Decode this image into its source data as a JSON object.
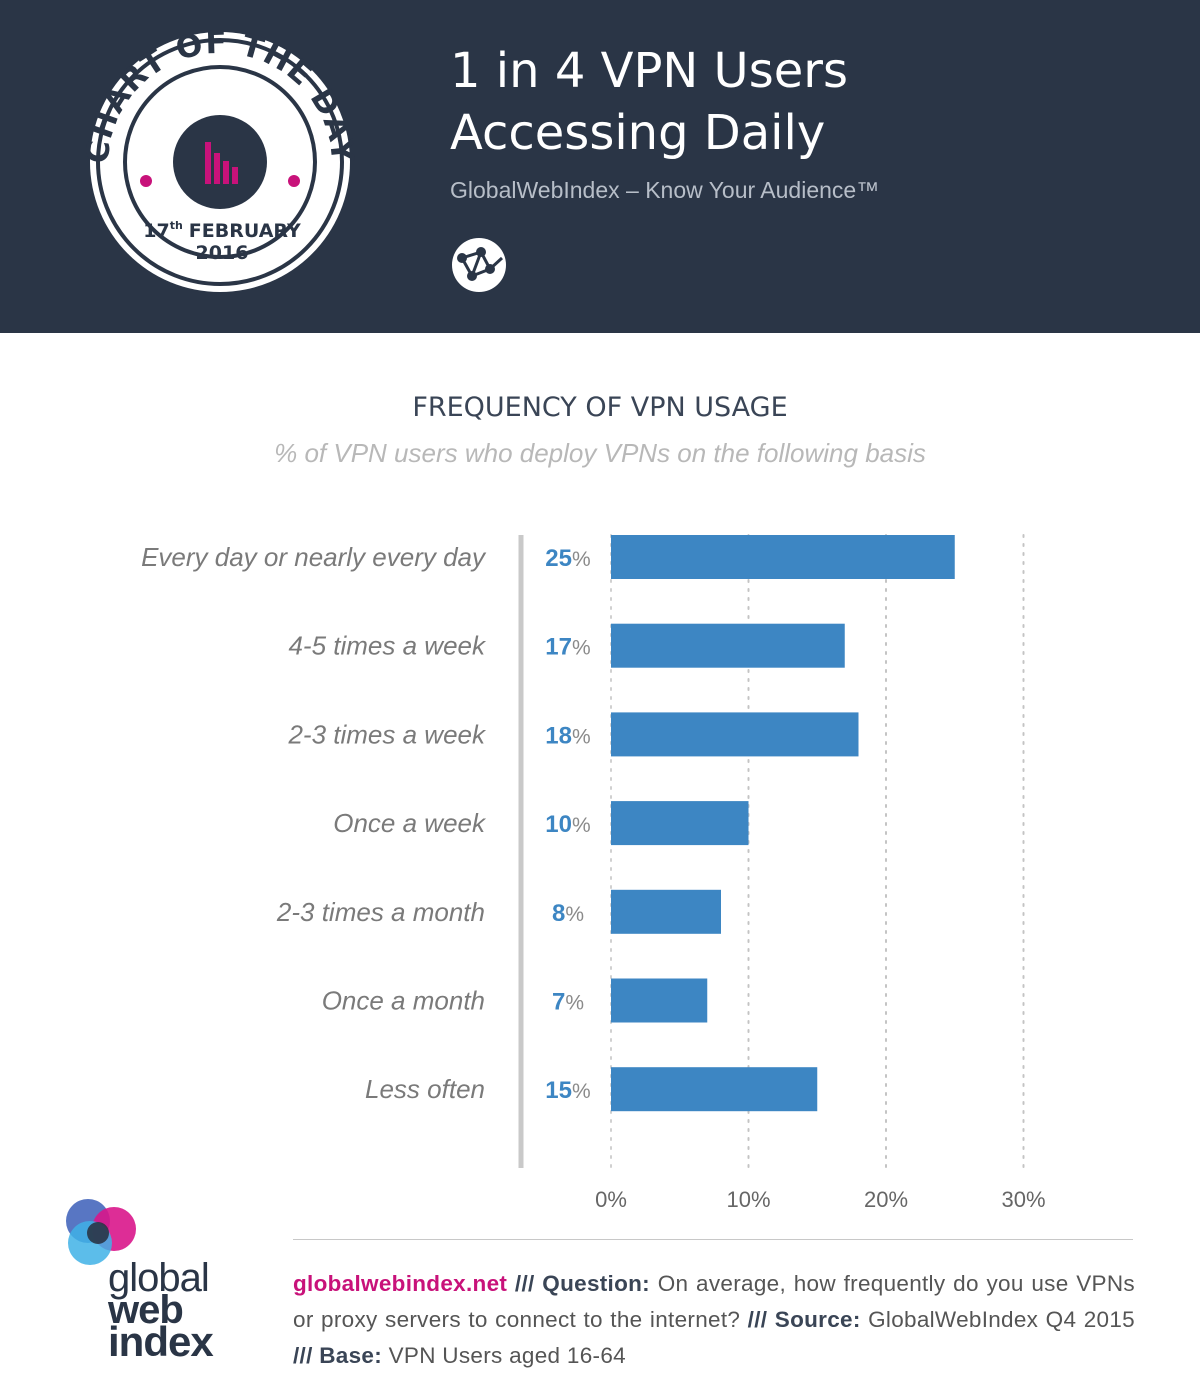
{
  "badge": {
    "ring_text": "CHART OF THE DAY",
    "date_day": "17",
    "date_suffix": "th",
    "date_month": "FEBRUARY",
    "date_year": "2016"
  },
  "header": {
    "title_line1": "1 in 4 VPN Users",
    "title_line2": "Accessing Daily",
    "tagline": "GlobalWebIndex – Know Your Audience™",
    "icon": "globe-network-icon"
  },
  "colors": {
    "header_bg": "#2a3546",
    "bar": "#3d86c3",
    "accent_pink": "#c8127a",
    "label_blue": "#3d86c3"
  },
  "chart_data": {
    "type": "bar",
    "orientation": "horizontal",
    "title": "FREQUENCY OF VPN USAGE",
    "subtitle": "% of VPN users who deploy VPNs on the following basis",
    "categories": [
      "Every day or nearly every day",
      "4-5 times a week",
      "2-3 times a week",
      "Once a week",
      "2-3 times a month",
      "Once a month",
      "Less often"
    ],
    "values": [
      25,
      17,
      18,
      10,
      8,
      7,
      15
    ],
    "value_suffix": "%",
    "xlim": [
      0,
      30
    ],
    "ticks": [
      0,
      10,
      20,
      30
    ],
    "tick_labels": [
      "0%",
      "10%",
      "20%",
      "30%"
    ],
    "grid": true
  },
  "footer": {
    "site": "globalwebindex.net",
    "sep": "///",
    "question_label": "Question:",
    "question_text": "On average, how frequently do you use VPNs or proxy servers to connect to the internet?",
    "source_label": "Source:",
    "source_text": "GlobalWebIndex Q4 2015",
    "base_label": "Base:",
    "base_text": "VPN Users aged 16-64"
  },
  "logo": {
    "word1": "global",
    "word2": "web",
    "word3": "index"
  }
}
